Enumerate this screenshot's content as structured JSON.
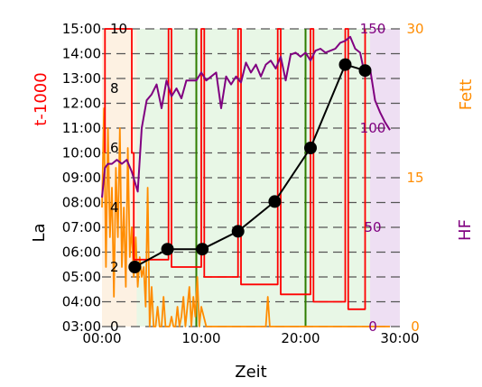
{
  "chart_data": {
    "type": "line",
    "xlabel": "Zeit",
    "x_ticks": [
      "00:00",
      "10:00",
      "20:00",
      "30:00"
    ],
    "xlim_minutes": [
      0,
      30
    ],
    "grid": "horizontal dashed",
    "axes": {
      "time": {
        "label": "t-1000",
        "color": "#ff0000",
        "ticks": [
          "03:00",
          "04:00",
          "05:00",
          "06:00",
          "07:00",
          "08:00",
          "09:00",
          "10:00",
          "11:00",
          "12:00",
          "13:00",
          "14:00",
          "15:00"
        ],
        "ylim": [
          3,
          15
        ]
      },
      "la": {
        "label": "La",
        "color": "#000000",
        "ticks": [
          "0",
          "2",
          "4",
          "6",
          "8",
          "10"
        ],
        "ylim": [
          0,
          10
        ]
      },
      "hf": {
        "label": "HF",
        "color": "#800080",
        "ticks": [
          "0",
          "50",
          "100",
          "150"
        ],
        "ylim": [
          0,
          150
        ]
      },
      "fett": {
        "label": "Fett",
        "color": "#ff8c00",
        "ticks": [
          "0",
          "15",
          "30"
        ],
        "ylim": [
          0,
          30
        ]
      }
    },
    "zones": [
      {
        "from": 0,
        "to": 3.5,
        "color": "#fdf1e2"
      },
      {
        "from": 3.5,
        "to": 27,
        "color": "#e8f7e6"
      },
      {
        "from": 27,
        "to": 30,
        "color": "#eedff3"
      }
    ],
    "series": [
      {
        "name": "La",
        "color": "#000000",
        "x": [
          3.3,
          6.6,
          10.1,
          13.7,
          17.4,
          21.0,
          24.5,
          26.5
        ],
        "y": [
          2.0,
          2.6,
          2.6,
          3.2,
          4.2,
          6.0,
          8.8,
          8.6
        ]
      },
      {
        "name": "t-1000",
        "color": "#ff0000",
        "x": [
          0.3,
          0.3,
          3.0,
          3.0,
          3.2,
          3.2,
          6.7,
          6.7,
          7.0,
          7.0,
          10.0,
          10.0,
          10.3,
          10.3,
          13.7,
          13.7,
          14.0,
          14.0,
          17.7,
          17.7,
          18.0,
          18.0,
          21.0,
          21.0,
          21.3,
          21.3,
          24.5,
          24.5,
          24.8,
          24.8,
          26.5,
          26.5
        ],
        "y": [
          10,
          15,
          15,
          10,
          10,
          5.7,
          5.7,
          15,
          15,
          5.4,
          5.4,
          15,
          15,
          5.0,
          5.0,
          15,
          15,
          4.7,
          4.7,
          15,
          15,
          4.3,
          4.3,
          15,
          15,
          4.0,
          4.0,
          15,
          15,
          3.7,
          3.7,
          15
        ]
      },
      {
        "name": "HF",
        "color": "#800080",
        "x": [
          0.0,
          0.3,
          0.6,
          1.0,
          1.5,
          2.0,
          2.5,
          3.0,
          3.6,
          4.0,
          4.5,
          5.0,
          5.5,
          6.0,
          6.5,
          7.0,
          7.5,
          8.0,
          8.5,
          9.0,
          9.5,
          10.0,
          10.5,
          11.0,
          11.5,
          12.0,
          12.5,
          13.0,
          13.5,
          14.0,
          14.5,
          15.0,
          15.5,
          16.0,
          16.5,
          17.0,
          17.5,
          18.0,
          18.5,
          19.0,
          19.5,
          20.0,
          20.5,
          21.0,
          21.5,
          22.0,
          22.5,
          23.0,
          23.5,
          24.0,
          24.5,
          25.0,
          25.5,
          26.0,
          26.5,
          27.0,
          27.5,
          28.0,
          28.5,
          29.0
        ],
        "y": [
          65,
          80,
          82,
          82,
          84,
          82,
          84,
          78,
          68,
          100,
          114,
          117,
          122,
          110,
          124,
          116,
          120,
          115,
          124,
          124,
          124,
          128,
          124,
          126,
          128,
          110,
          126,
          122,
          126,
          123,
          133,
          128,
          132,
          126,
          132,
          134,
          130,
          136,
          124,
          137,
          138,
          136,
          138,
          134,
          139,
          140,
          138,
          139,
          140,
          143,
          144,
          146,
          140,
          138,
          126,
          130,
          114,
          108,
          103,
          99
        ]
      },
      {
        "name": "Fett",
        "color": "#ff8c00",
        "x": [
          0.0,
          0.2,
          0.4,
          0.6,
          0.8,
          1.0,
          1.2,
          1.4,
          1.6,
          1.8,
          2.0,
          2.2,
          2.4,
          2.6,
          2.8,
          3.0,
          3.2,
          3.4,
          3.6,
          3.8,
          4.0,
          4.2,
          4.4,
          4.6,
          4.8,
          5.0,
          5.2,
          5.4,
          5.6,
          5.8,
          6.0,
          6.2,
          6.4,
          6.6,
          6.8,
          7.0,
          7.2,
          7.4,
          7.6,
          7.8,
          8.0,
          8.2,
          8.4,
          8.6,
          8.8,
          9.0,
          9.2,
          9.4,
          9.6,
          9.8,
          10.0,
          10.5,
          11.0,
          12.0,
          13.0,
          14.0,
          15.0,
          16.0,
          16.5,
          16.7,
          16.9,
          18.0,
          19.0,
          20.0,
          21.0,
          22.0,
          23.0,
          24.0,
          25.0,
          26.0,
          27.0,
          28.0,
          29.0
        ],
        "y": [
          12,
          22,
          6,
          20,
          9,
          14,
          3,
          16,
          9,
          20,
          6,
          12,
          4,
          18,
          7,
          10,
          5,
          9,
          4,
          7,
          5,
          6,
          2,
          14,
          0,
          4,
          0,
          0,
          2,
          0,
          0,
          3,
          0,
          0,
          0,
          1,
          0,
          0,
          2,
          0,
          1,
          3,
          0,
          2,
          4,
          0,
          3,
          1,
          5,
          0,
          2,
          0,
          0,
          0,
          0,
          0,
          0,
          0,
          0,
          3,
          0,
          0,
          0,
          0,
          0,
          0,
          0,
          0,
          0,
          0,
          0,
          0,
          0
        ]
      }
    ],
    "vertical_lines": [
      {
        "x": 9.5,
        "color": "#2e7d00"
      },
      {
        "x": 20.5,
        "color": "#2e7d00"
      }
    ]
  }
}
